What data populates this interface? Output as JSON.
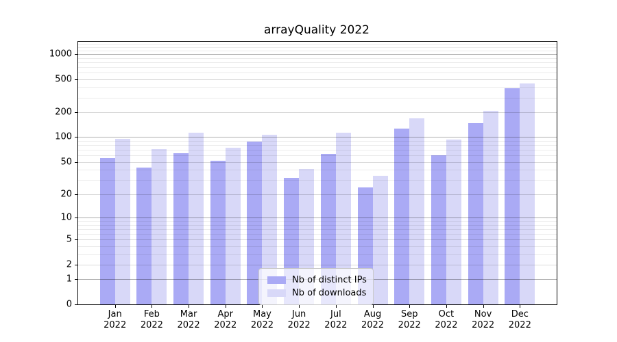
{
  "chart_data": {
    "type": "bar",
    "title": "arrayQuality 2022",
    "year_label": "2022",
    "categories": [
      "Jan",
      "Feb",
      "Mar",
      "Apr",
      "May",
      "Jun",
      "Jul",
      "Aug",
      "Sep",
      "Oct",
      "Nov",
      "Dec"
    ],
    "series": [
      {
        "name": "Nb of distinct IPs",
        "color": "#aaaaf5",
        "values": [
          56,
          43,
          64,
          52,
          88,
          32,
          63,
          24,
          127,
          60,
          147,
          387
        ]
      },
      {
        "name": "Nb of downloads",
        "color": "#d8d8f8",
        "values": [
          95,
          72,
          113,
          74,
          107,
          41,
          114,
          34,
          169,
          94,
          208,
          445
        ]
      }
    ],
    "yscale": "log1p",
    "yticks": [
      0,
      1,
      2,
      5,
      10,
      20,
      50,
      100,
      200,
      500,
      1000
    ],
    "major_power_ticks": [
      1,
      10,
      100,
      1000
    ],
    "minor_gridline_values": [
      3,
      4,
      6,
      7,
      8,
      9,
      30,
      40,
      60,
      70,
      80,
      90,
      300,
      400,
      600,
      700,
      800,
      900,
      1100,
      1200,
      1300
    ],
    "ylim": [
      0,
      1400
    ],
    "xlabel": "",
    "ylabel": "",
    "grid": "both",
    "legend_position": "inside lower center",
    "colors": {
      "major_grid": "rgba(0,0,0,0.32)",
      "mid_grid": "rgba(0,0,0,0.15)",
      "minor_grid": "rgba(0,0,0,0.08)",
      "axis": "#000000",
      "background": "#ffffff"
    }
  }
}
